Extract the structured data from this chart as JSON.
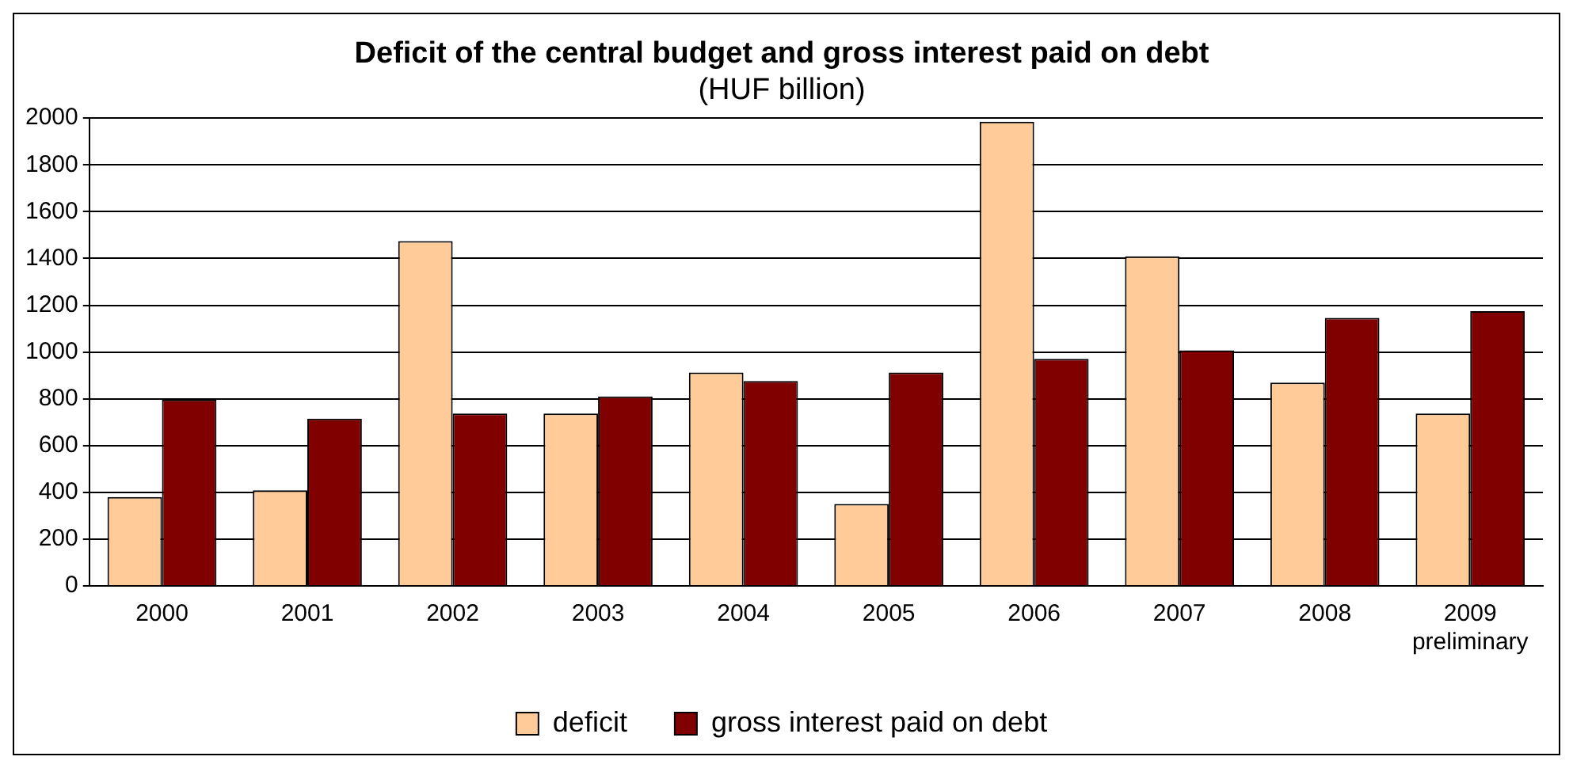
{
  "chart_data": {
    "type": "bar",
    "title": "Deficit of the central budget and gross interest paid on debt",
    "subtitle": "(HUF billion)",
    "categories": [
      "2000",
      "2001",
      "2002",
      "2003",
      "2004",
      "2005",
      "2006",
      "2007",
      "2008",
      "2009\npreliminary"
    ],
    "series": [
      {
        "name": "deficit",
        "color": "#ffcc99",
        "values": [
          380,
          409,
          1474,
          737,
          912,
          350,
          1985,
          1409,
          869,
          737
        ]
      },
      {
        "name": "gross interest paid on debt",
        "color": "#800000",
        "values": [
          796,
          715,
          737,
          810,
          876,
          912,
          971,
          1007,
          1146,
          1175
        ]
      }
    ],
    "ylim": [
      0,
      2000
    ],
    "yticks": [
      0,
      200,
      400,
      600,
      800,
      1000,
      1200,
      1400,
      1600,
      1800,
      2000
    ],
    "grid": "y",
    "legend": "bottom"
  }
}
